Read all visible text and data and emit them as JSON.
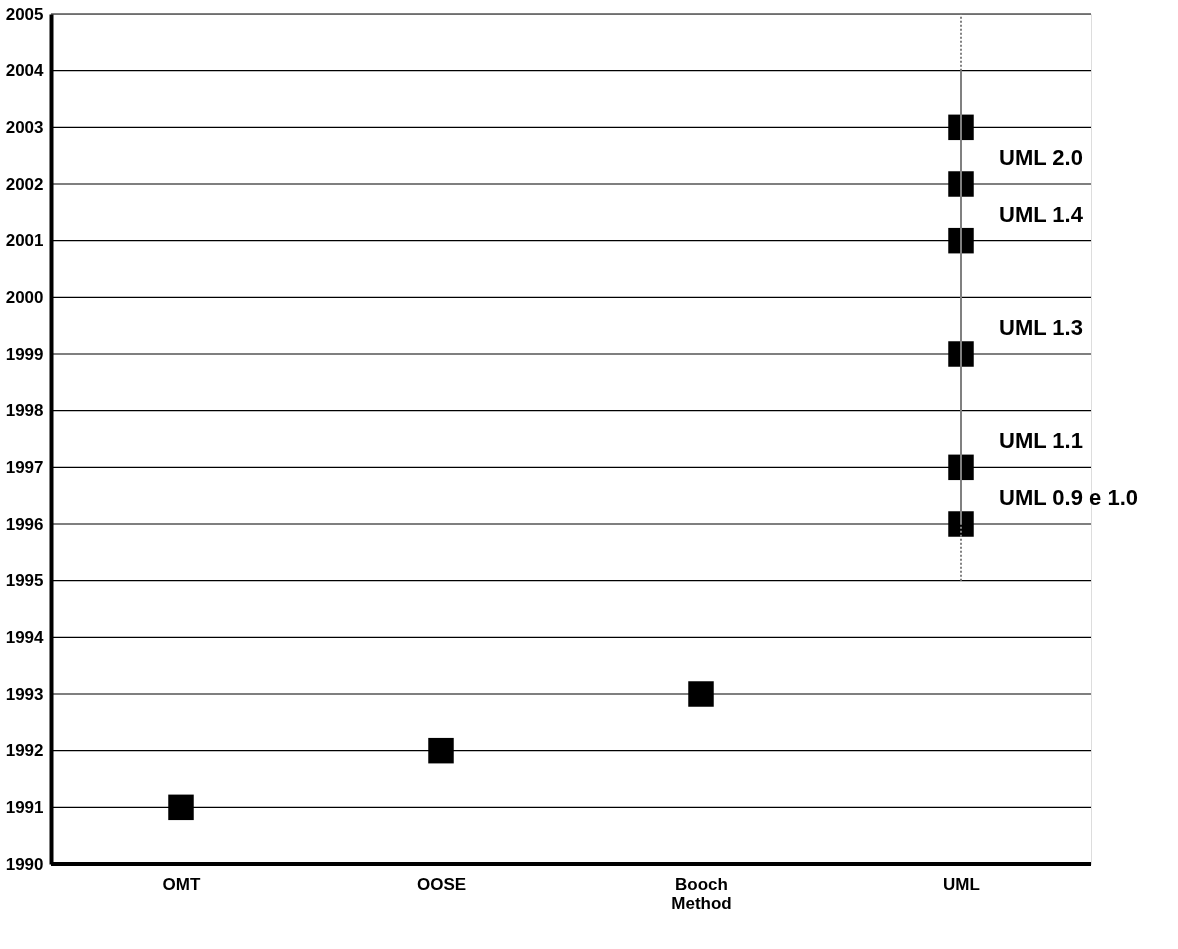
{
  "chart_data": {
    "type": "scatter",
    "categories": [
      "OMT",
      "OOSE",
      "Booch Method",
      "UML"
    ],
    "ylim": [
      1990,
      2005
    ],
    "yticks": [
      1990,
      1991,
      1992,
      1993,
      1994,
      1995,
      1996,
      1997,
      1998,
      1999,
      2000,
      2001,
      2002,
      2003,
      2004,
      2005
    ],
    "grid": "y",
    "marker": "square",
    "series": [
      {
        "type": "line",
        "x": [
          "UML",
          "UML"
        ],
        "values": [
          1995,
          1996
        ],
        "color": "#808080",
        "line_style": "dotted",
        "marker": "none"
      },
      {
        "type": "line",
        "x": [
          "UML",
          "UML"
        ],
        "values": [
          1996,
          2004
        ],
        "color": "#808080",
        "line_style": "solid",
        "marker": "none"
      },
      {
        "type": "line",
        "x": [
          "UML",
          "UML"
        ],
        "values": [
          2004,
          2005
        ],
        "color": "#808080",
        "line_style": "dotted",
        "marker": "none"
      },
      {
        "x": [
          "OMT",
          "OOSE",
          "Booch Method",
          "UML",
          "UML",
          "UML",
          "UML",
          "UML",
          "UML"
        ],
        "values": [
          1991,
          1992,
          1993,
          1996,
          1997,
          1999,
          2001,
          2002,
          2003
        ],
        "color": "#000000"
      }
    ],
    "annotations": [
      {
        "text": "UML 0.9 e 1.0",
        "x": "UML",
        "y": 1996
      },
      {
        "text": "UML 1.1",
        "x": "UML",
        "y": 1997
      },
      {
        "text": "UML 1.3",
        "x": "UML",
        "y": 1999
      },
      {
        "text": "UML 1.4",
        "x": "UML",
        "y": 2001
      },
      {
        "text": "UML 2.0",
        "x": "UML",
        "y": 2002
      }
    ]
  }
}
